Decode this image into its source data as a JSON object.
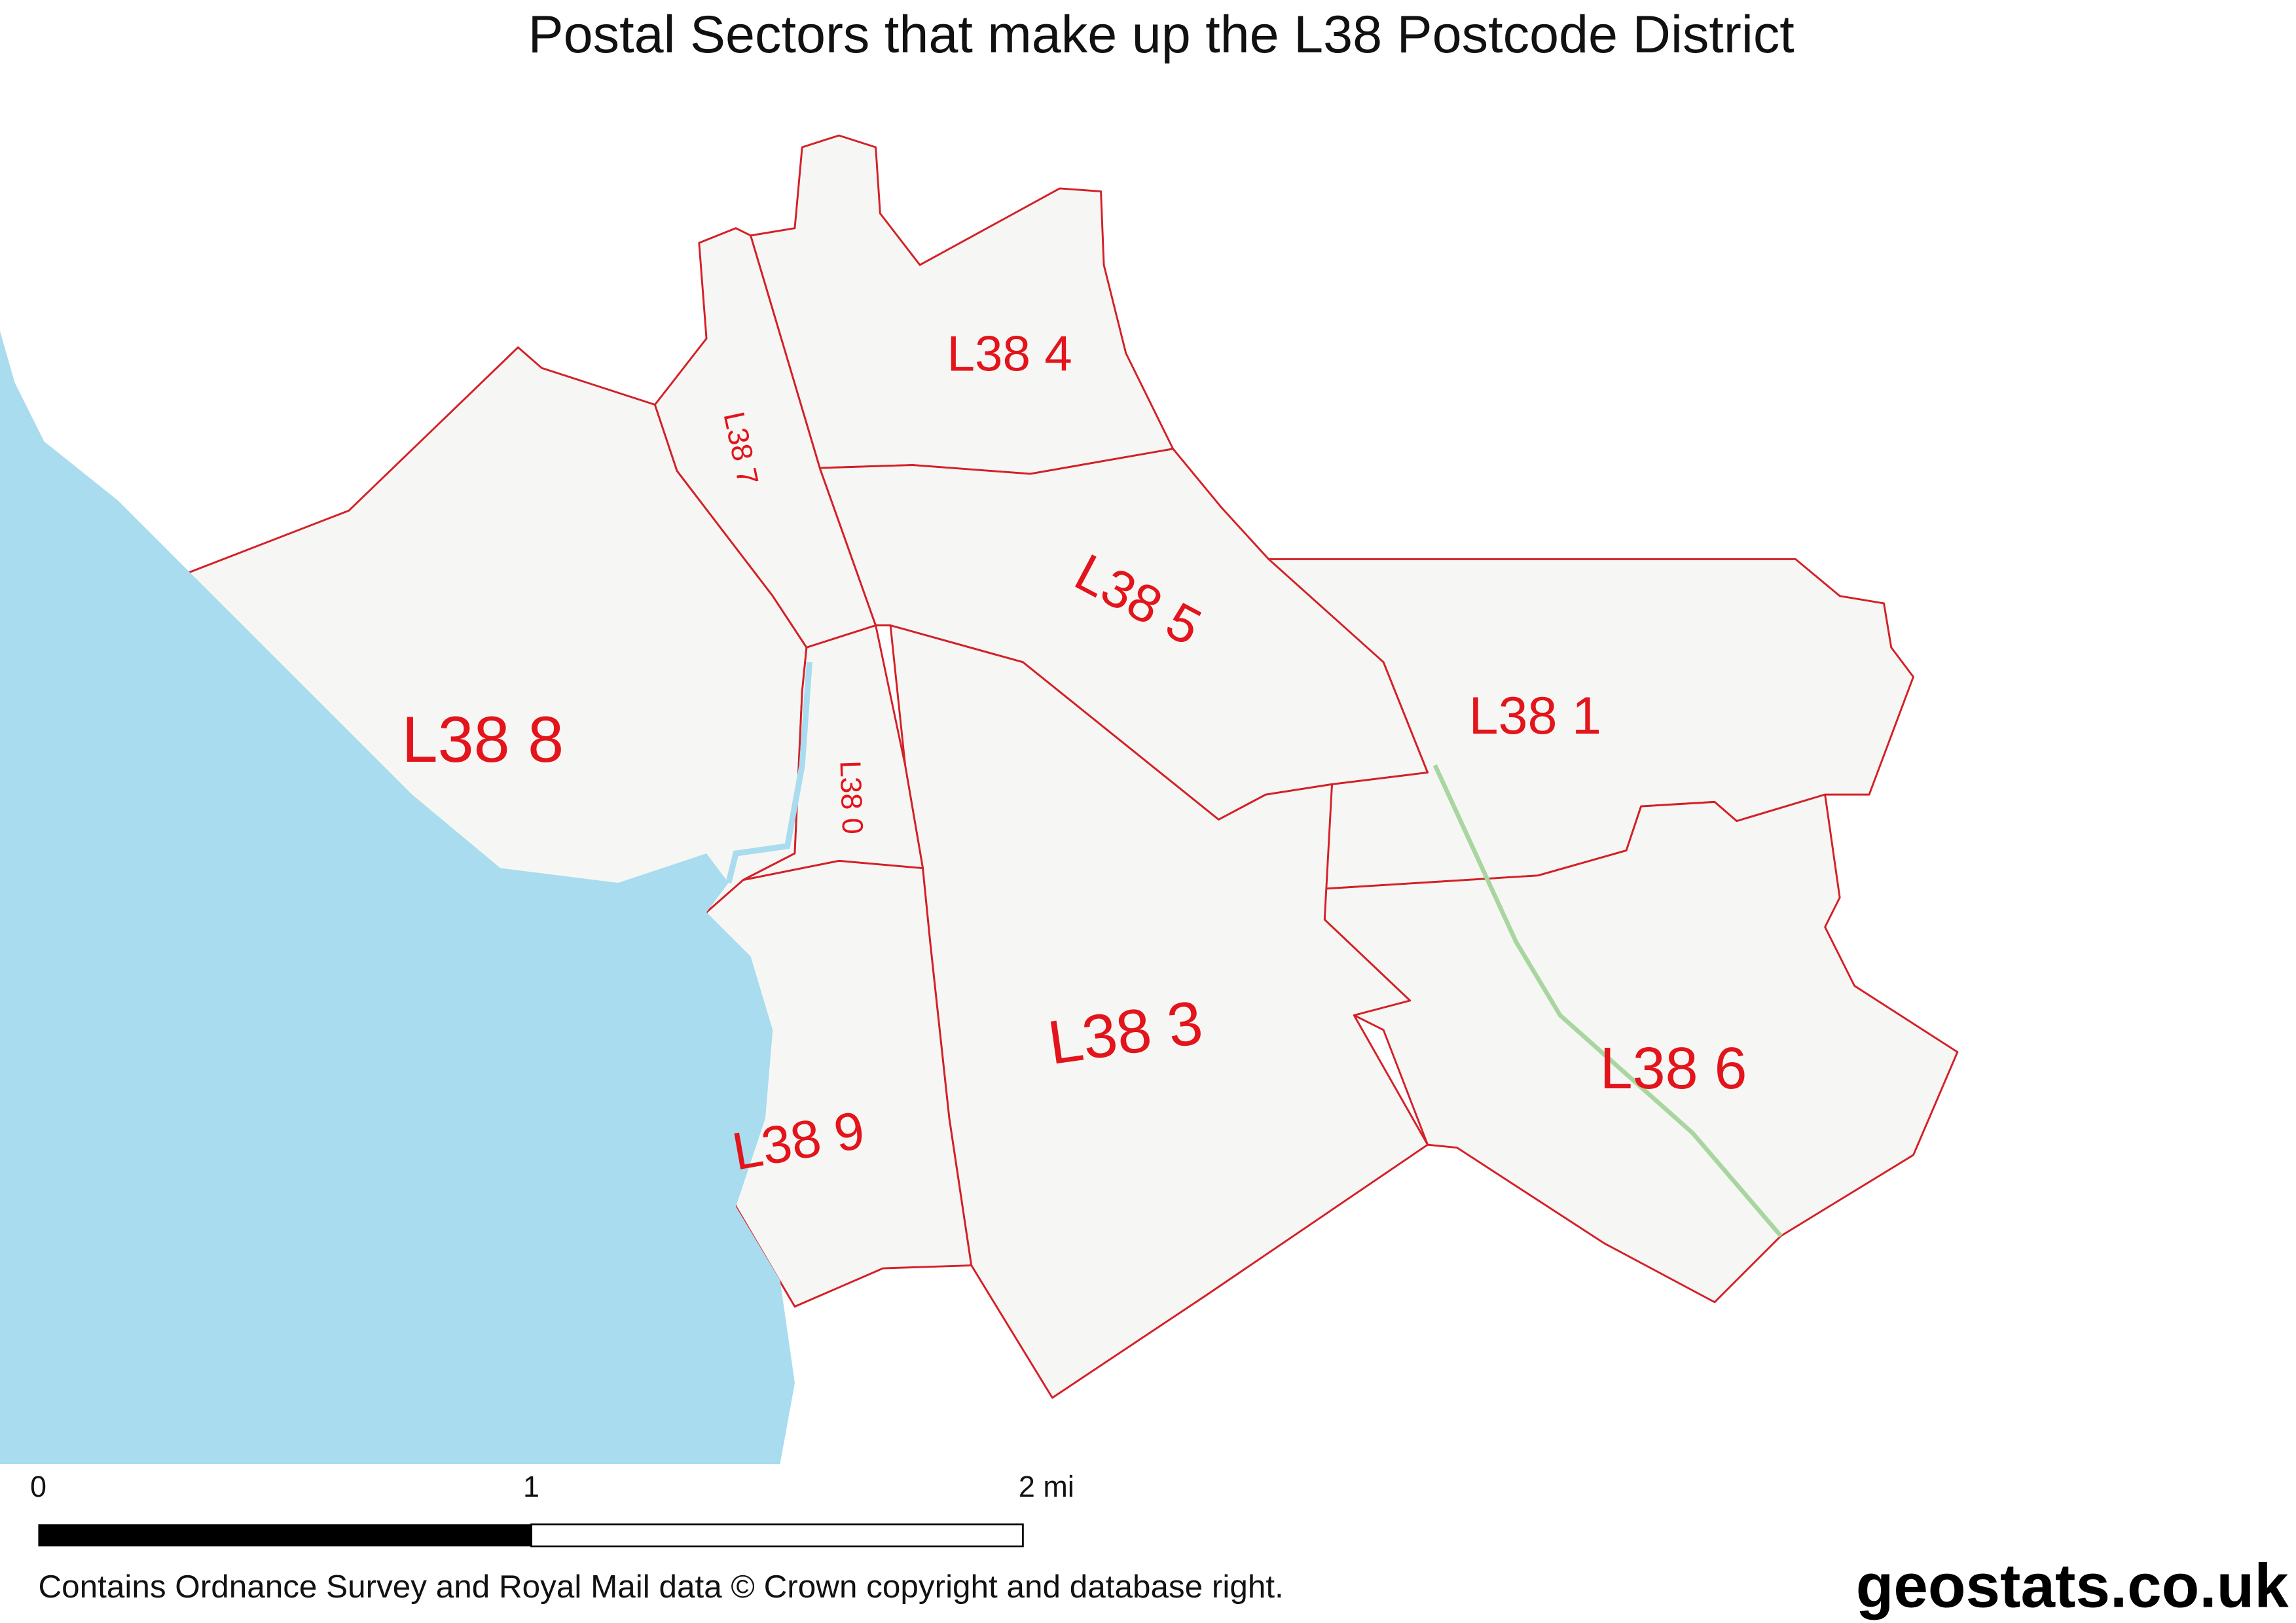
{
  "title": "Postal Sectors that make up the L38 Postcode District",
  "sectors": [
    {
      "label": "L38 4"
    },
    {
      "label": "L38 7"
    },
    {
      "label": "L38 5"
    },
    {
      "label": "L38 1"
    },
    {
      "label": "L38 8"
    },
    {
      "label": "L38 0"
    },
    {
      "label": "L38 3"
    },
    {
      "label": "L38 6"
    },
    {
      "label": "L38 9"
    }
  ],
  "scale": {
    "labels": [
      "0",
      "1",
      "2 mi"
    ]
  },
  "attribution": "Contains Ordnance Survey and Royal Mail data © Crown copyright and database right.",
  "brand": "geostats.co.uk"
}
